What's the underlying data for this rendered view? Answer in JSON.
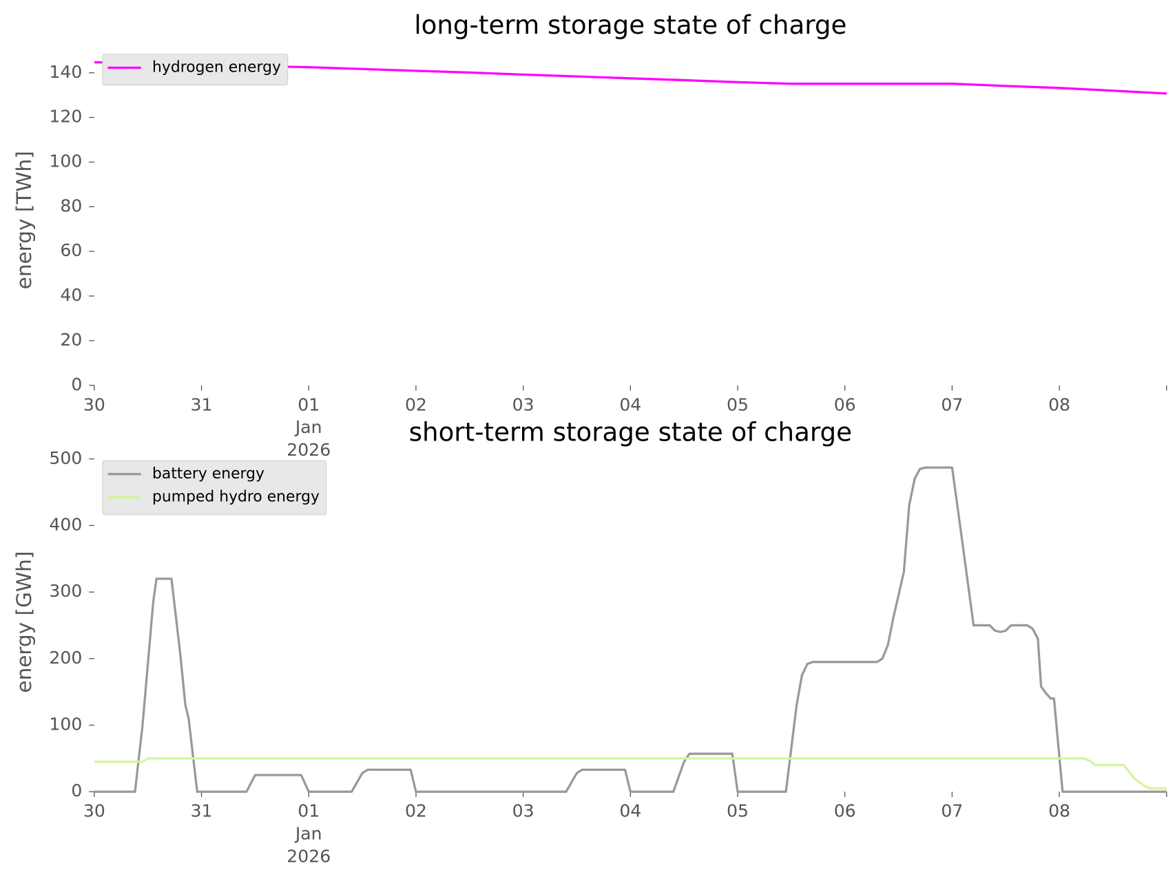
{
  "chart_data": [
    {
      "type": "line",
      "title": "long-term storage state of charge",
      "ylabel": "energy [TWh]",
      "legend": "upper left",
      "grid": false,
      "xlim": [
        0,
        10
      ],
      "xticks": [
        {
          "value": 0,
          "label": "30"
        },
        {
          "value": 1,
          "label": "31"
        },
        {
          "value": 2,
          "label": "01\nJan\n2026"
        },
        {
          "value": 3,
          "label": "02"
        },
        {
          "value": 4,
          "label": "03"
        },
        {
          "value": 5,
          "label": "04"
        },
        {
          "value": 6,
          "label": "05"
        },
        {
          "value": 7,
          "label": "06"
        },
        {
          "value": 8,
          "label": "07"
        },
        {
          "value": 9,
          "label": "08"
        },
        {
          "value": 10,
          "label": null
        }
      ],
      "ylim": [
        0,
        148
      ],
      "yticks": [
        0,
        20,
        40,
        60,
        80,
        100,
        120,
        140
      ],
      "series": [
        {
          "name": "hydrogen energy",
          "color": "#ff00ff",
          "x": [
            0,
            0.5,
            1,
            1.5,
            2,
            2.5,
            3,
            3.5,
            4,
            4.5,
            5,
            5.5,
            6,
            6.5,
            7,
            7.5,
            8,
            8.5,
            9,
            9.5,
            10
          ],
          "values": [
            144.7,
            144.3,
            143.6,
            143,
            142.5,
            141.7,
            140.9,
            140.1,
            139.2,
            138.4,
            137.5,
            136.7,
            135.8,
            135.1,
            135.1,
            135.1,
            135.1,
            134.1,
            133.2,
            132,
            130.7
          ]
        }
      ]
    },
    {
      "type": "line",
      "title": "short-term storage state of charge",
      "ylabel": "energy [GWh]",
      "legend": "upper left",
      "grid": false,
      "xlim": [
        0,
        10
      ],
      "xticks": [
        {
          "value": 0,
          "label": "30"
        },
        {
          "value": 1,
          "label": "31"
        },
        {
          "value": 2,
          "label": "01\nJan\n2026"
        },
        {
          "value": 3,
          "label": "02"
        },
        {
          "value": 4,
          "label": "03"
        },
        {
          "value": 5,
          "label": "04"
        },
        {
          "value": 6,
          "label": "05"
        },
        {
          "value": 7,
          "label": "06"
        },
        {
          "value": 8,
          "label": "07"
        },
        {
          "value": 9,
          "label": "08"
        },
        {
          "value": 10,
          "label": null
        }
      ],
      "ylim": [
        0,
        510
      ],
      "yticks": [
        0,
        100,
        200,
        300,
        400,
        500
      ],
      "series": [
        {
          "name": "battery energy",
          "color": "#999999",
          "x": [
            0,
            0.38,
            0.45,
            0.55,
            0.58,
            0.72,
            0.8,
            0.85,
            0.88,
            0.96,
            1.42,
            1.5,
            1.93,
            2.0,
            2.4,
            2.5,
            2.55,
            2.95,
            3.0,
            4.4,
            4.5,
            4.55,
            4.95,
            5.0,
            5.4,
            5.5,
            5.55,
            5.95,
            6.0,
            6.45,
            6.55,
            6.6,
            6.65,
            6.7,
            7.3,
            7.35,
            7.4,
            7.45,
            7.55,
            7.6,
            7.65,
            7.7,
            7.75,
            8.0,
            8.1,
            8.2,
            8.35,
            8.4,
            8.45,
            8.5,
            8.55,
            8.7,
            8.75,
            8.8,
            8.83,
            8.88,
            8.92,
            8.95,
            9.03,
            10
          ],
          "values": [
            0,
            0,
            100,
            285,
            320,
            320,
            210,
            130,
            110,
            0,
            0,
            25,
            25,
            0,
            0,
            28,
            33,
            33,
            0,
            0,
            28,
            33,
            33,
            0,
            0,
            45,
            57,
            57,
            0,
            0,
            130,
            175,
            192,
            195,
            195,
            200,
            220,
            260,
            330,
            430,
            470,
            485,
            487,
            487,
            370,
            250,
            250,
            242,
            240,
            242,
            250,
            250,
            245,
            230,
            158,
            147,
            140,
            140,
            0,
            0
          ]
        },
        {
          "name": "pumped hydro energy",
          "color": "#d4f59a",
          "x": [
            0,
            0.45,
            0.5,
            9.23,
            9.3,
            9.33,
            9.6,
            9.7,
            9.8,
            9.85,
            10
          ],
          "values": [
            45,
            45,
            50,
            50,
            45,
            40,
            40,
            20,
            8,
            5,
            5
          ]
        }
      ]
    }
  ]
}
